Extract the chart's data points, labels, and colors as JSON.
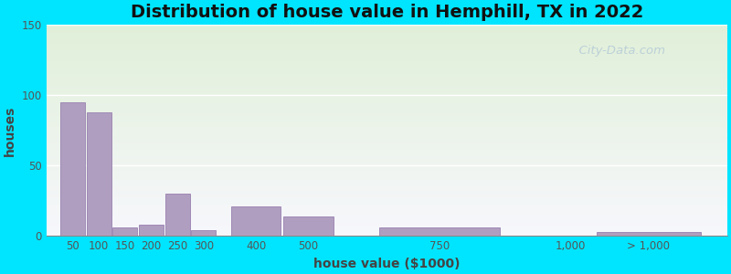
{
  "title": "Distribution of house value in Hemphill, TX in 2022",
  "xlabel": "house value ($1000)",
  "ylabel": "houses",
  "bar_color": "#b09ec0",
  "bar_edgecolor": "#9880b0",
  "background_outer": "#00e5ff",
  "ylim": [
    0,
    150
  ],
  "yticks": [
    0,
    50,
    100,
    150
  ],
  "categories": [
    "50",
    "100",
    "150",
    "200",
    "250",
    "300",
    "400",
    "500",
    "750",
    "1,000",
    "> 1,000"
  ],
  "values": [
    95,
    88,
    6,
    8,
    30,
    4,
    21,
    14,
    6,
    0,
    3
  ],
  "watermark": "  City-Data.com",
  "title_fontsize": 14,
  "axis_fontsize": 10,
  "tick_fontsize": 8.5,
  "x_positions": [
    50,
    100,
    150,
    200,
    250,
    300,
    400,
    500,
    750,
    1000,
    1150
  ],
  "bar_widths": [
    47,
    47,
    47,
    47,
    47,
    47,
    95,
    95,
    230,
    230,
    200
  ],
  "tick_positions": [
    50,
    100,
    150,
    200,
    250,
    300,
    400,
    500,
    750,
    1000,
    1150
  ],
  "tick_labels": [
    "50",
    "100",
    "150",
    "200",
    "250",
    "300",
    "400",
    "500",
    "750",
    "1,000",
    "> 1,000"
  ],
  "xlim": [
    0,
    1300
  ]
}
